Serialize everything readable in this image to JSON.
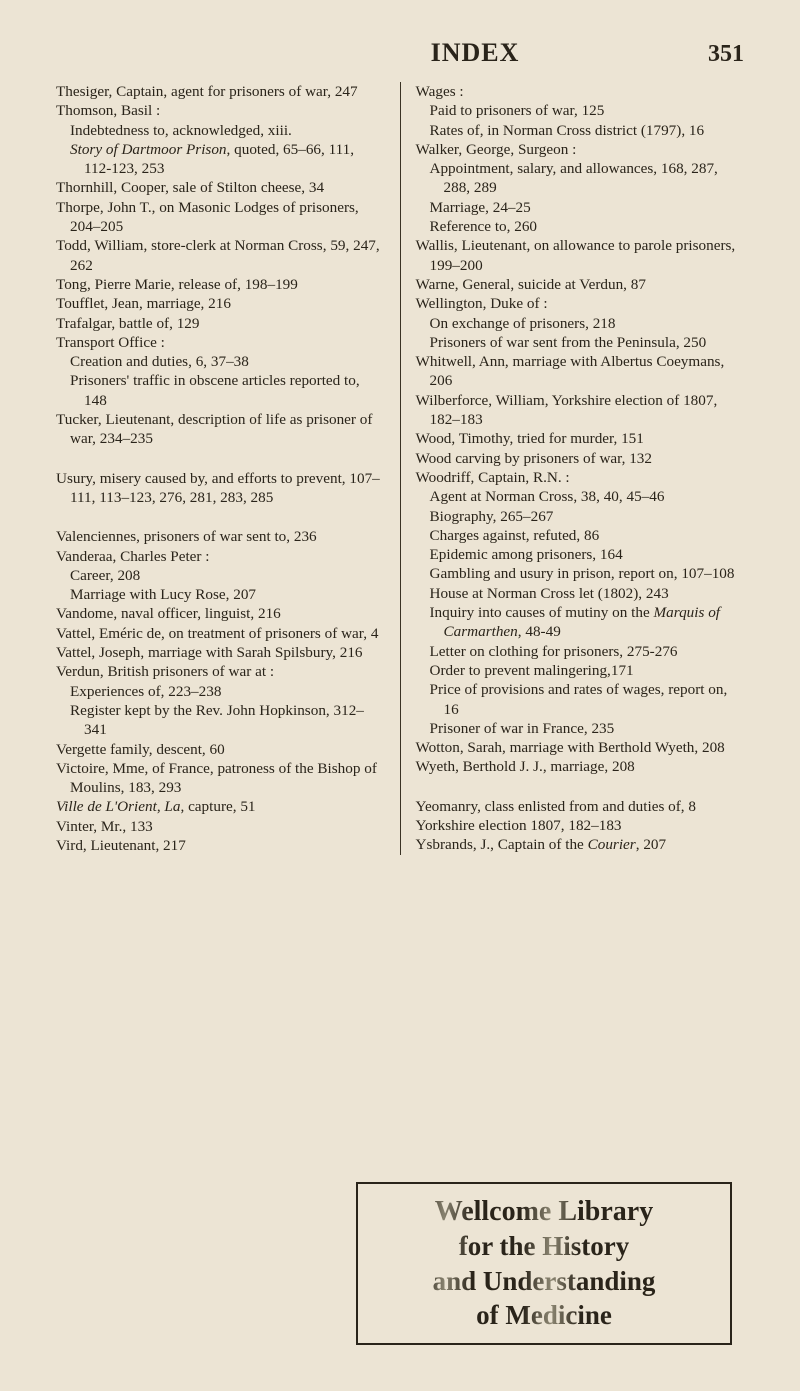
{
  "header": {
    "title": "INDEX",
    "page": "351"
  },
  "left_items": [
    {
      "cls": "main",
      "t": "Thesiger, Captain, agent for prisoners of war, 247"
    },
    {
      "cls": "main",
      "t": "Thomson, Basil :"
    },
    {
      "cls": "sub",
      "t": "Indebtedness to, acknowledged, xiii."
    },
    {
      "cls": "sub",
      "html": "<span class=\"italic\">Story of Dartmoor Prison</span>, quoted, 65–66, 111, 112-123, 253"
    },
    {
      "cls": "main",
      "t": "Thornhill, Cooper, sale of Stilton cheese, 34"
    },
    {
      "cls": "main",
      "t": "Thorpe, John T., on Masonic Lodges of prisoners, 204–205"
    },
    {
      "cls": "main",
      "t": "Todd, William, store-clerk at Norman Cross, 59, 247, 262"
    },
    {
      "cls": "main",
      "t": "Tong, Pierre Marie, release of, 198–199"
    },
    {
      "cls": "main",
      "t": "Toufflet, Jean, marriage, 216"
    },
    {
      "cls": "main",
      "t": "Trafalgar, battle of, 129"
    },
    {
      "cls": "main",
      "t": "Transport Office :"
    },
    {
      "cls": "sub",
      "t": "Creation and duties, 6, 37–38"
    },
    {
      "cls": "sub",
      "t": "Prisoners' traffic in obscene articles reported to, 148"
    },
    {
      "cls": "main",
      "t": "Tucker, Lieutenant, description of life as prisoner of war, 234–235"
    },
    {
      "cls": "gap"
    },
    {
      "cls": "main",
      "t": "Usury, misery caused by, and efforts to prevent, 107–111, 113–123, 276, 281, 283, 285"
    },
    {
      "cls": "gap"
    },
    {
      "cls": "main",
      "t": "Valenciennes, prisoners of war sent to, 236"
    },
    {
      "cls": "main",
      "t": "Vanderaa, Charles Peter :"
    },
    {
      "cls": "sub",
      "t": "Career, 208"
    },
    {
      "cls": "sub",
      "t": "Marriage with Lucy Rose, 207"
    },
    {
      "cls": "main",
      "t": "Vandome, naval officer, linguist, 216"
    },
    {
      "cls": "main",
      "t": "Vattel, Eméric de, on treatment of prisoners of war, 4"
    },
    {
      "cls": "main",
      "t": "Vattel, Joseph, marriage with Sarah Spilsbury, 216"
    },
    {
      "cls": "main",
      "t": "Verdun, British prisoners of war at :"
    },
    {
      "cls": "sub",
      "t": "Experiences of, 223–238"
    },
    {
      "cls": "sub",
      "t": "Register kept by the Rev. John Hopkinson, 312–341"
    },
    {
      "cls": "main",
      "t": "Vergette family, descent, 60"
    },
    {
      "cls": "main",
      "t": "Victoire, Mme, of France, patroness of the Bishop of Moulins, 183, 293"
    },
    {
      "cls": "main",
      "html": "<span class=\"italic\">Ville de L'Orient</span>, <span class=\"italic\">La</span>, capture, 51"
    },
    {
      "cls": "main",
      "t": "Vinter, Mr., 133"
    },
    {
      "cls": "main",
      "t": "Vird, Lieutenant, 217"
    }
  ],
  "right_items": [
    {
      "cls": "main",
      "t": "Wages :"
    },
    {
      "cls": "sub",
      "t": "Paid to prisoners of war, 125"
    },
    {
      "cls": "sub",
      "t": "Rates of, in Norman Cross district (1797), 16"
    },
    {
      "cls": "main",
      "t": "Walker, George, Surgeon :"
    },
    {
      "cls": "sub",
      "t": "Appointment, salary, and allowances, 168, 287, 288, 289"
    },
    {
      "cls": "sub",
      "t": "Marriage, 24–25"
    },
    {
      "cls": "sub",
      "t": "Reference to, 260"
    },
    {
      "cls": "main",
      "t": "Wallis, Lieutenant, on allowance to parole prisoners, 199–200"
    },
    {
      "cls": "main",
      "t": "Warne, General, suicide at Verdun, 87"
    },
    {
      "cls": "main",
      "t": "Wellington, Duke of :"
    },
    {
      "cls": "sub",
      "t": "On exchange of prisoners, 218"
    },
    {
      "cls": "sub",
      "t": "Prisoners of war sent from the Peninsula, 250"
    },
    {
      "cls": "main",
      "t": "Whitwell, Ann, marriage with Albertus Coeymans, 206"
    },
    {
      "cls": "main",
      "t": "Wilberforce, William, Yorkshire election of 1807, 182–183"
    },
    {
      "cls": "main",
      "t": "Wood, Timothy, tried for murder, 151"
    },
    {
      "cls": "main",
      "t": "Wood carving by prisoners of war, 132"
    },
    {
      "cls": "main",
      "t": "Woodriff, Captain, R.N. :"
    },
    {
      "cls": "sub",
      "t": "Agent at Norman Cross, 38, 40, 45–46"
    },
    {
      "cls": "sub",
      "t": "Biography, 265–267"
    },
    {
      "cls": "sub",
      "t": "Charges against, refuted, 86"
    },
    {
      "cls": "sub",
      "t": "Epidemic among prisoners, 164"
    },
    {
      "cls": "sub",
      "t": "Gambling and usury in prison, report on, 107–108"
    },
    {
      "cls": "sub",
      "t": "House at Norman Cross let (1802), 243"
    },
    {
      "cls": "sub",
      "html": "Inquiry into causes of mutiny on the <span class=\"italic\">Marquis of Carmarthen</span>, 48-49"
    },
    {
      "cls": "sub",
      "t": "Letter on clothing for prisoners, 275-276"
    },
    {
      "cls": "sub",
      "t": "Order to prevent malingering,171"
    },
    {
      "cls": "sub",
      "t": "Price of provisions and rates of wages, report on, 16"
    },
    {
      "cls": "sub",
      "t": "Prisoner of war in France, 235"
    },
    {
      "cls": "main",
      "t": "Wotton, Sarah, marriage with Berthold Wyeth, 208"
    },
    {
      "cls": "main",
      "t": "Wyeth, Berthold J. J., marriage, 208"
    },
    {
      "cls": "gap"
    },
    {
      "cls": "main",
      "t": "Yeomanry, class enlisted from and duties of, 8"
    },
    {
      "cls": "main",
      "t": "Yorkshire election 1807, 182–183"
    },
    {
      "cls": "main",
      "html": "Ysbrands, J., Captain of the <span class=\"italic\">Courier</span>, 207"
    }
  ],
  "stamp": {
    "l1": "Wellcome Library",
    "l2": "for the History",
    "l3": "and Understanding",
    "l4": "of Medicine"
  }
}
